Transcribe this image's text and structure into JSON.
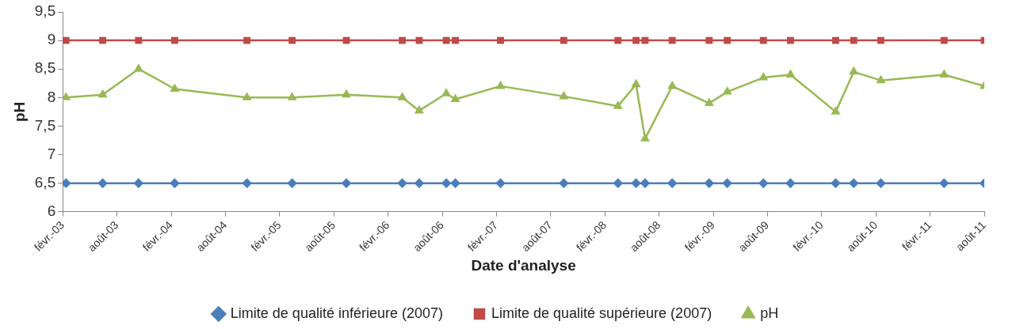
{
  "chart_data": {
    "type": "line",
    "xlabel": "Date d'analyse",
    "ylabel": "pH",
    "x": [
      "2003-02-12",
      "2003-06-14",
      "2003-10-13",
      "2004-02-13",
      "2004-10-13",
      "2005-03-13",
      "2005-09-13",
      "2006-03-19",
      "2006-05-15",
      "2006-08-15",
      "2006-09-15",
      "2007-02-15",
      "2007-09-15",
      "2008-03-15",
      "2008-05-15",
      "2008-06-15",
      "2008-09-15",
      "2009-01-18",
      "2009-03-18",
      "2009-07-18",
      "2009-10-18",
      "2010-03-18",
      "2010-05-18",
      "2010-08-18",
      "2011-03-18",
      "2011-08-01"
    ],
    "series": [
      {
        "name": "Limite de qualité inférieure (2007)",
        "color": "#4a7ebb",
        "marker": "diamond",
        "values": [
          6.5,
          6.5,
          6.5,
          6.5,
          6.5,
          6.5,
          6.5,
          6.5,
          6.5,
          6.5,
          6.5,
          6.5,
          6.5,
          6.5,
          6.5,
          6.5,
          6.5,
          6.5,
          6.5,
          6.5,
          6.5,
          6.5,
          6.5,
          6.5,
          6.5,
          6.5
        ]
      },
      {
        "name": "Limite de qualité supérieure (2007)",
        "color": "#be4b48",
        "marker": "square",
        "values": [
          9,
          9,
          9,
          9,
          9,
          9,
          9,
          9,
          9,
          9,
          9,
          9,
          9,
          9,
          9,
          9,
          9,
          9,
          9,
          9,
          9,
          9,
          9,
          9,
          9,
          9
        ]
      },
      {
        "name": "pH",
        "color": "#98b954",
        "marker": "triangle",
        "values": [
          8.0,
          8.05,
          8.5,
          8.15,
          8.0,
          8.0,
          8.05,
          8.0,
          7.77,
          8.07,
          7.97,
          8.2,
          8.02,
          7.85,
          8.23,
          7.28,
          8.2,
          7.9,
          8.1,
          8.35,
          8.4,
          7.75,
          8.45,
          8.3,
          8.4,
          8.2
        ]
      }
    ],
    "xlim": [
      "2003-02",
      "2011-08"
    ],
    "xticks": [
      {
        "value": "2003-02",
        "label": "févr.-03"
      },
      {
        "value": "2003-08",
        "label": "août-03"
      },
      {
        "value": "2004-02",
        "label": "févr.-04"
      },
      {
        "value": "2004-08",
        "label": "août-04"
      },
      {
        "value": "2005-02",
        "label": "févr.-05"
      },
      {
        "value": "2005-08",
        "label": "août-05"
      },
      {
        "value": "2006-02",
        "label": "févr.-06"
      },
      {
        "value": "2006-08",
        "label": "août-06"
      },
      {
        "value": "2007-02",
        "label": "févr.-07"
      },
      {
        "value": "2007-08",
        "label": "août-07"
      },
      {
        "value": "2008-02",
        "label": "févr.-08"
      },
      {
        "value": "2008-08",
        "label": "août-08"
      },
      {
        "value": "2009-02",
        "label": "févr.-09"
      },
      {
        "value": "2009-08",
        "label": "août-09"
      },
      {
        "value": "2010-02",
        "label": "févr.-10"
      },
      {
        "value": "2010-08",
        "label": "août-10"
      },
      {
        "value": "2011-02",
        "label": "févr.-11"
      },
      {
        "value": "2011-08",
        "label": "août-11"
      }
    ],
    "ylim": [
      6,
      9.5
    ],
    "yticks": [
      {
        "value": 6,
        "label": "6"
      },
      {
        "value": 6.5,
        "label": "6,5"
      },
      {
        "value": 7,
        "label": "7"
      },
      {
        "value": 7.5,
        "label": "7,5"
      },
      {
        "value": 8,
        "label": "8"
      },
      {
        "value": 8.5,
        "label": "8,5"
      },
      {
        "value": 9,
        "label": "9"
      },
      {
        "value": 9.5,
        "label": "9,5"
      }
    ],
    "grid": false,
    "legend": "bottom",
    "line_style": "solid"
  }
}
